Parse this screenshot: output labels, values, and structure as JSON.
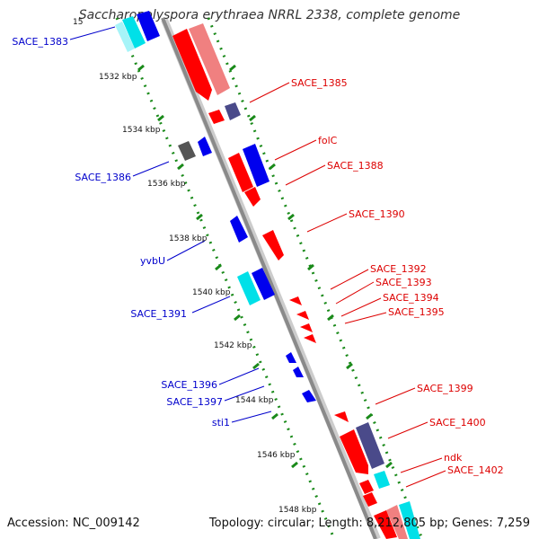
{
  "title": "Saccharopolyspora erythraea NRRL 2338, complete genome",
  "footer": {
    "accession": "Accession: NC_009142",
    "summary": "Topology: circular; Length: 8,212,805 bp; Genes: 7,259"
  },
  "colors": {
    "forward_gene": "#ff0000",
    "forward_gene_light": "#f08080",
    "reverse_gene": "#0000ee",
    "reverse_gene_dark": "#4a4a8a",
    "cyan_gene": "#00e0e8",
    "backbone": "#8a8a8a",
    "ruler": "#1a8a1a",
    "forward_label": "#dd0000",
    "reverse_label": "#0000cc"
  },
  "ruler_labels": [
    "15",
    "1532 kbp",
    "1534 kbp",
    "1536 kbp",
    "1538 kbp",
    "1540 kbp",
    "1542 kbp",
    "1544 kbp",
    "1546 kbp",
    "1548 kbp"
  ],
  "forward_genes": [
    "SACE_1385",
    "folC",
    "SACE_1388",
    "SACE_1390",
    "SACE_1392",
    "SACE_1393",
    "SACE_1394",
    "SACE_1395",
    "SACE_1399",
    "SACE_1400",
    "ndk",
    "SACE_1402"
  ],
  "reverse_genes": [
    "SACE_1383",
    "SACE_1386",
    "yvbU",
    "SACE_1391",
    "SACE_1396",
    "SACE_1397",
    "sti1"
  ]
}
